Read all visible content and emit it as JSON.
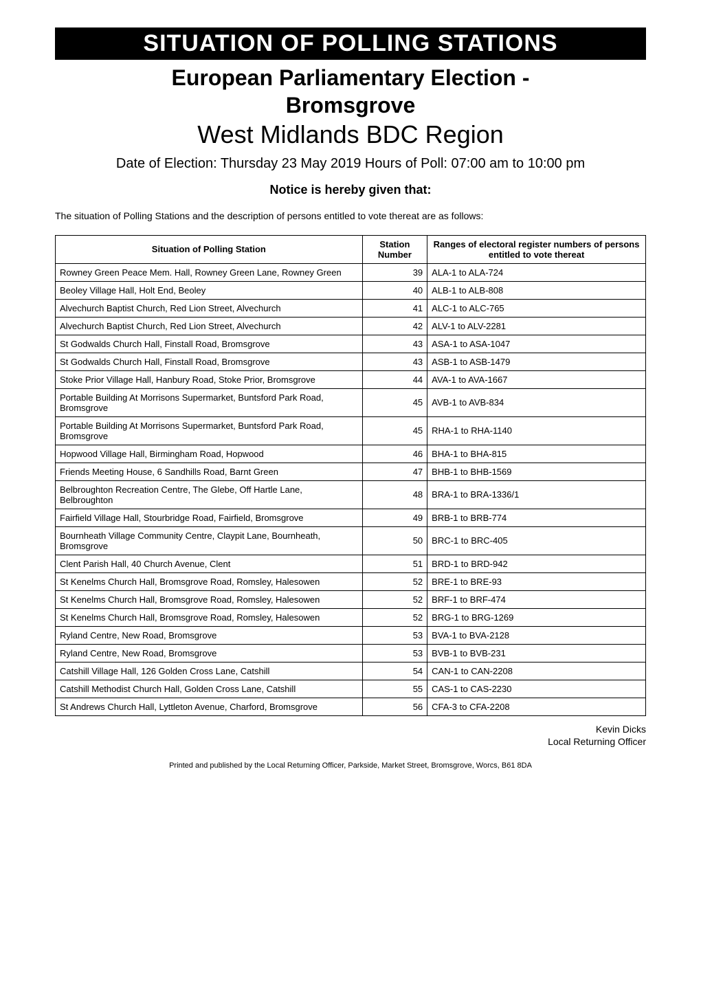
{
  "banner": "SITUATION OF POLLING STATIONS",
  "title_line1": "European Parliamentary Election -",
  "title_line2": "Bromsgrove",
  "region": "West Midlands BDC Region",
  "poll_info": "Date of Election: Thursday 23 May 2019 Hours of Poll: 07:00 am to 10:00 pm",
  "notice": "Notice is hereby given that:",
  "intro": "The situation of Polling Stations and the description of persons entitled to vote thereat are as follows:",
  "table": {
    "columns": [
      "Situation of Polling Station",
      "Station Number",
      "Ranges of electoral register numbers of persons entitled to vote thereat"
    ],
    "rows": [
      [
        "Rowney Green Peace Mem. Hall, Rowney Green Lane, Rowney Green",
        "39",
        "ALA-1 to ALA-724"
      ],
      [
        "Beoley Village Hall, Holt End, Beoley",
        "40",
        "ALB-1 to ALB-808"
      ],
      [
        "Alvechurch Baptist Church, Red Lion Street, Alvechurch",
        "41",
        "ALC-1 to ALC-765"
      ],
      [
        "Alvechurch Baptist Church, Red Lion Street, Alvechurch",
        "42",
        "ALV-1 to ALV-2281"
      ],
      [
        "St Godwalds Church Hall, Finstall Road, Bromsgrove",
        "43",
        "ASA-1 to ASA-1047"
      ],
      [
        "St Godwalds Church Hall, Finstall Road, Bromsgrove",
        "43",
        "ASB-1 to ASB-1479"
      ],
      [
        "Stoke Prior Village Hall, Hanbury Road, Stoke Prior, Bromsgrove",
        "44",
        "AVA-1 to AVA-1667"
      ],
      [
        "Portable Building At Morrisons Supermarket, Buntsford Park Road, Bromsgrove",
        "45",
        "AVB-1 to AVB-834"
      ],
      [
        "Portable Building At Morrisons Supermarket, Buntsford Park Road, Bromsgrove",
        "45",
        "RHA-1 to RHA-1140"
      ],
      [
        "Hopwood Village Hall, Birmingham Road, Hopwood",
        "46",
        "BHA-1 to BHA-815"
      ],
      [
        "Friends Meeting House, 6 Sandhills Road, Barnt Green",
        "47",
        "BHB-1 to BHB-1569"
      ],
      [
        "Belbroughton Recreation Centre, The Glebe, Off Hartle Lane, Belbroughton",
        "48",
        "BRA-1 to BRA-1336/1"
      ],
      [
        "Fairfield Village Hall, Stourbridge Road, Fairfield, Bromsgrove",
        "49",
        "BRB-1 to BRB-774"
      ],
      [
        "Bournheath Village Community Centre, Claypit Lane, Bournheath, Bromsgrove",
        "50",
        "BRC-1 to BRC-405"
      ],
      [
        "Clent Parish Hall, 40 Church Avenue, Clent",
        "51",
        "BRD-1 to BRD-942"
      ],
      [
        "St Kenelms Church Hall, Bromsgrove Road, Romsley, Halesowen",
        "52",
        "BRE-1 to BRE-93"
      ],
      [
        "St Kenelms Church Hall, Bromsgrove Road, Romsley, Halesowen",
        "52",
        "BRF-1 to BRF-474"
      ],
      [
        "St Kenelms Church Hall, Bromsgrove Road, Romsley, Halesowen",
        "52",
        "BRG-1 to BRG-1269"
      ],
      [
        "Ryland Centre, New Road, Bromsgrove",
        "53",
        "BVA-1 to BVA-2128"
      ],
      [
        "Ryland Centre, New Road, Bromsgrove",
        "53",
        "BVB-1 to BVB-231"
      ],
      [
        "Catshill Village Hall, 126 Golden Cross Lane, Catshill",
        "54",
        "CAN-1 to CAN-2208"
      ],
      [
        "Catshill Methodist Church Hall, Golden Cross Lane, Catshill",
        "55",
        "CAS-1 to CAS-2230"
      ],
      [
        "St Andrews Church Hall, Lyttleton Avenue, Charford, Bromsgrove",
        "56",
        "CFA-3 to CFA-2208"
      ]
    ]
  },
  "signature_name": "Kevin Dicks",
  "signature_role": "Local Returning Officer",
  "footer": "Printed and published by the Local Returning Officer, Parkside, Market Street, Bromsgrove, Worcs, B61 8DA",
  "style": {
    "page_bg": "#ffffff",
    "text_color": "#000000",
    "banner_bg": "#000000",
    "banner_fg": "#ffffff",
    "border_color": "#000000"
  }
}
